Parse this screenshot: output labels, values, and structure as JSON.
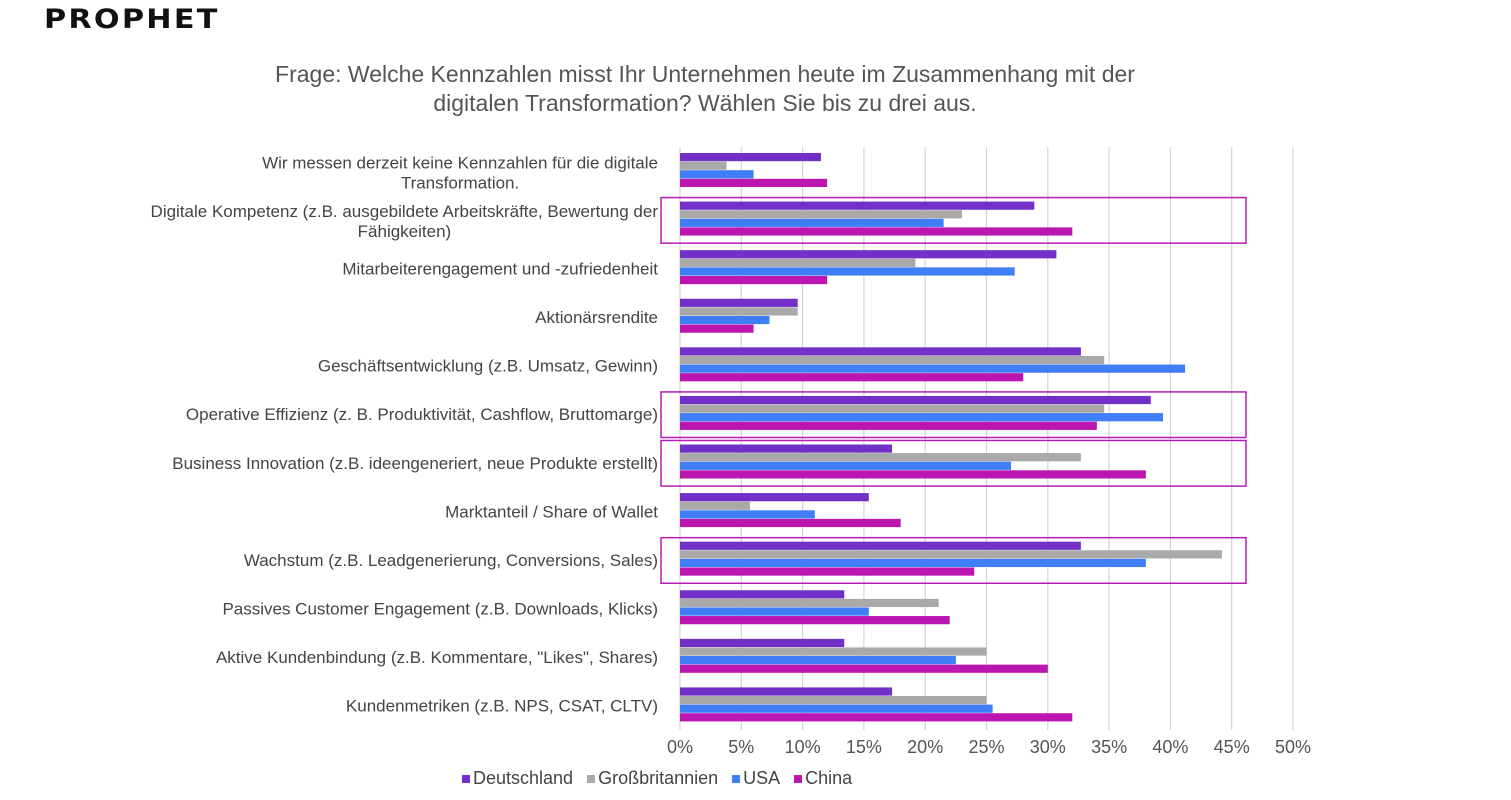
{
  "brand": {
    "logo_text": "PROPHET"
  },
  "chart_data": {
    "type": "bar",
    "orientation": "horizontal",
    "title": "Frage: Welche Kennzahlen misst Ihr Unternehmen heute im Zusammenhang mit der digitalen Transformation? Wählen Sie bis zu drei aus.",
    "title_lines": [
      "Frage: Welche Kennzahlen misst Ihr Unternehmen heute im Zusammenhang mit der",
      "digitalen Transformation? Wählen Sie bis zu drei aus."
    ],
    "xlabel": "",
    "ylabel": "",
    "xlim": [
      0,
      50
    ],
    "x_ticks": [
      "0%",
      "5%",
      "10%",
      "15%",
      "20%",
      "25%",
      "30%",
      "35%",
      "40%",
      "45%",
      "50%"
    ],
    "grid": true,
    "legend_position": "bottom",
    "categories": [
      [
        "Wir messen derzeit keine Kennzahlen für die digitale",
        "Transformation."
      ],
      [
        "Digitale Kompetenz (z.B. ausgebildete Arbeitskräfte, Bewertung der",
        "Fähigkeiten)"
      ],
      [
        "Mitarbeiterengagement und -zufriedenheit"
      ],
      [
        "Aktionärsrendite"
      ],
      [
        "Geschäftsentwicklung (z.B. Umsatz, Gewinn)"
      ],
      [
        "Operative Effizienz (z. B. Produktivität, Cashflow, Bruttomarge)"
      ],
      [
        "Business Innovation (z.B. ideengeneriert, neue Produkte erstellt)"
      ],
      [
        "Marktanteil / Share of Wallet"
      ],
      [
        "Wachstum (z.B. Leadgenerierung, Conversions, Sales)"
      ],
      [
        "Passives Customer Engagement (z.B. Downloads, Klicks)"
      ],
      [
        "Aktive Kundenbindung (z.B. Kommentare, \"Likes\", Shares)"
      ],
      [
        "Kundenmetriken (z.B. NPS, CSAT, CLTV)"
      ]
    ],
    "highlighted_categories": [
      1,
      5,
      6,
      8
    ],
    "highlight_color": "#b51cb5",
    "series": [
      {
        "name": "Deutschland",
        "color": "#7330c8",
        "values": [
          11.5,
          28.9,
          30.7,
          9.6,
          32.7,
          38.4,
          17.3,
          15.4,
          32.7,
          13.4,
          13.4,
          17.3
        ]
      },
      {
        "name": "Großbritannien",
        "color": "#a9a9a9",
        "values": [
          3.8,
          23.0,
          19.2,
          9.6,
          34.6,
          34.6,
          32.7,
          5.7,
          44.2,
          21.1,
          25.0,
          25.0
        ]
      },
      {
        "name": "USA",
        "color": "#3f7ef7",
        "values": [
          6.0,
          21.5,
          27.3,
          7.3,
          41.2,
          39.4,
          27.0,
          11.0,
          38.0,
          15.4,
          22.5,
          25.5
        ]
      },
      {
        "name": "China",
        "color": "#bb16b0",
        "values": [
          12.0,
          32.0,
          12.0,
          6.0,
          28.0,
          34.0,
          38.0,
          18.0,
          24.0,
          22.0,
          30.0,
          32.0
        ]
      }
    ]
  }
}
